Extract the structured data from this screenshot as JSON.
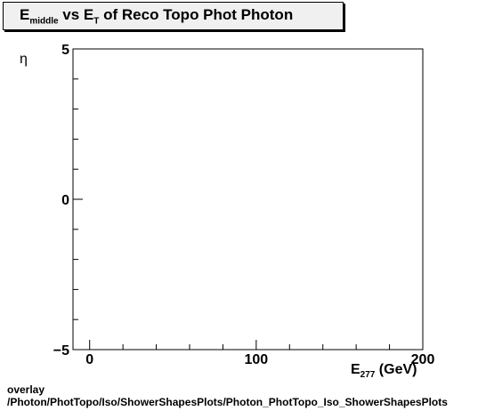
{
  "chart_data": {
    "type": "scatter",
    "title": {
      "main": "E",
      "sub1": "middle",
      "mid": " vs E",
      "sub2": "T",
      "rest": " of Reco Topo Phot Photon"
    },
    "xlabel": {
      "main": "E",
      "sub": "277",
      "rest": " (GeV)"
    },
    "ylabel": "η",
    "xlim": [
      -10,
      200
    ],
    "ylim": [
      -5,
      5
    ],
    "x_ticks": [
      "0",
      "100",
      "200"
    ],
    "y_ticks": [
      "5",
      "0",
      "−5"
    ],
    "series": [],
    "grid": false
  },
  "footer": {
    "line1": "overlay",
    "line2": "/Photon/PhotTopo/Iso/ShowerShapesPlots/Photon_PhotTopo_Iso_ShowerShapesPlots"
  }
}
